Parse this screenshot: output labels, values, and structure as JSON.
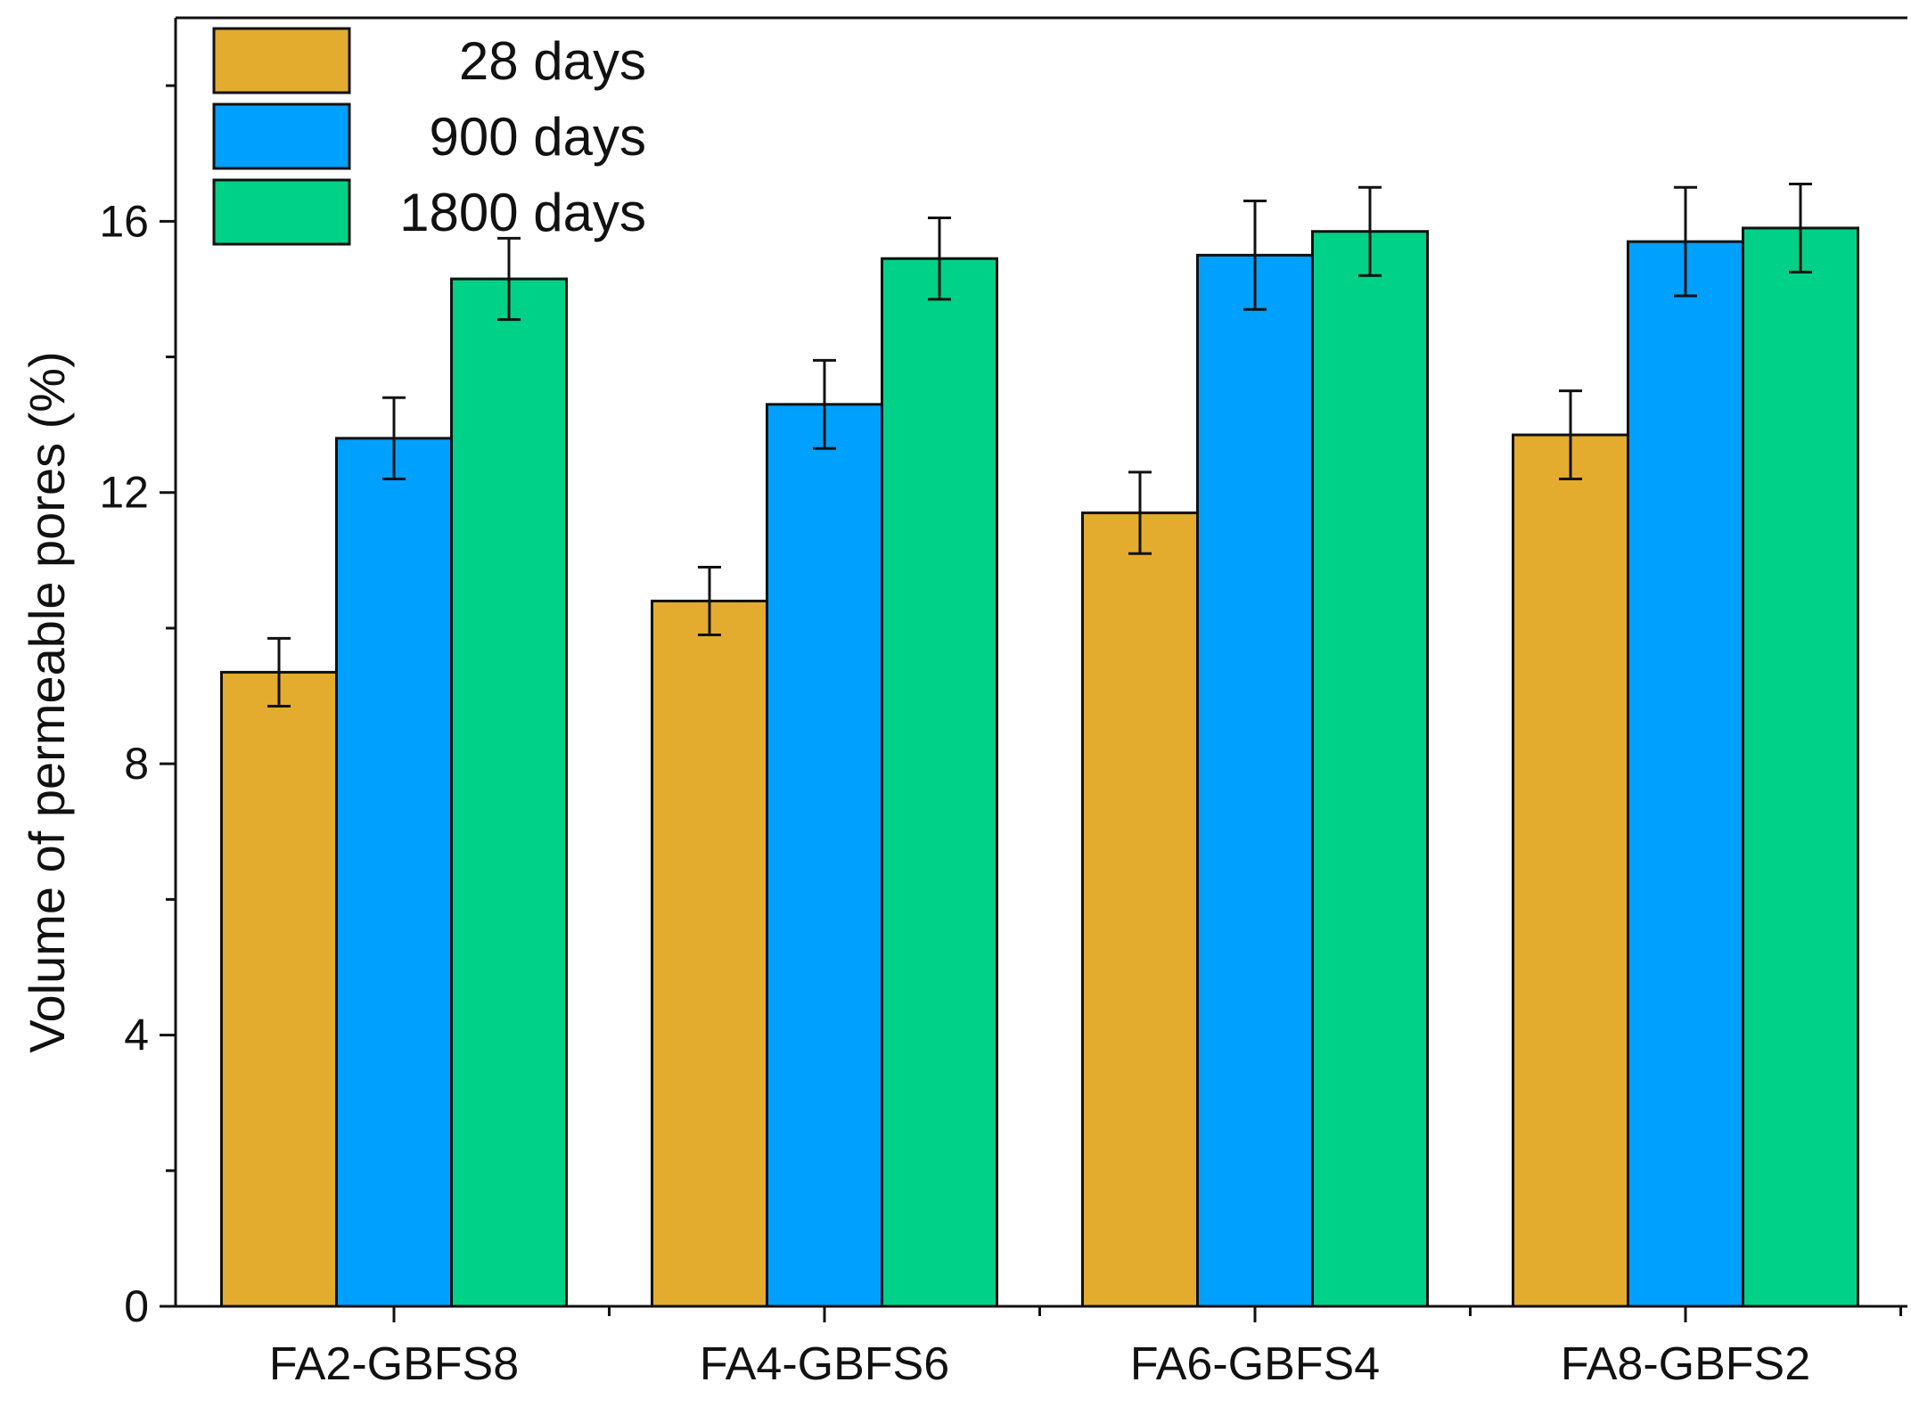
{
  "chart_data": {
    "type": "bar",
    "title": "",
    "xlabel": "",
    "ylabel": "Volume of permeable pores (%)",
    "ylim": [
      0,
      19
    ],
    "yticks": [
      0,
      4,
      8,
      12,
      16
    ],
    "ytick_labels": [
      "0",
      "4",
      "8",
      "12",
      "16"
    ],
    "minor_ticks_between": 1,
    "grid": false,
    "legend_position": "top-left",
    "categories": [
      "FA2-GBFS8",
      "FA4-GBFS6",
      "FA6-GBFS4",
      "FA8-GBFS2"
    ],
    "series": [
      {
        "name": "28 days",
        "color": "#E3AC2E",
        "values": [
          9.35,
          10.4,
          11.7,
          12.85
        ],
        "errors": [
          0.5,
          0.5,
          0.6,
          0.65
        ]
      },
      {
        "name": "900 days",
        "color": "#00A0FF",
        "values": [
          12.8,
          13.3,
          15.5,
          15.7
        ],
        "errors": [
          0.6,
          0.65,
          0.8,
          0.8
        ]
      },
      {
        "name": "1800 days",
        "color": "#00D189",
        "values": [
          15.15,
          15.45,
          15.85,
          15.9
        ],
        "errors": [
          0.6,
          0.6,
          0.65,
          0.65
        ]
      }
    ],
    "colors": {
      "axis": "#111111",
      "bar_outline": "#111111",
      "error_bar": "#111111"
    }
  }
}
